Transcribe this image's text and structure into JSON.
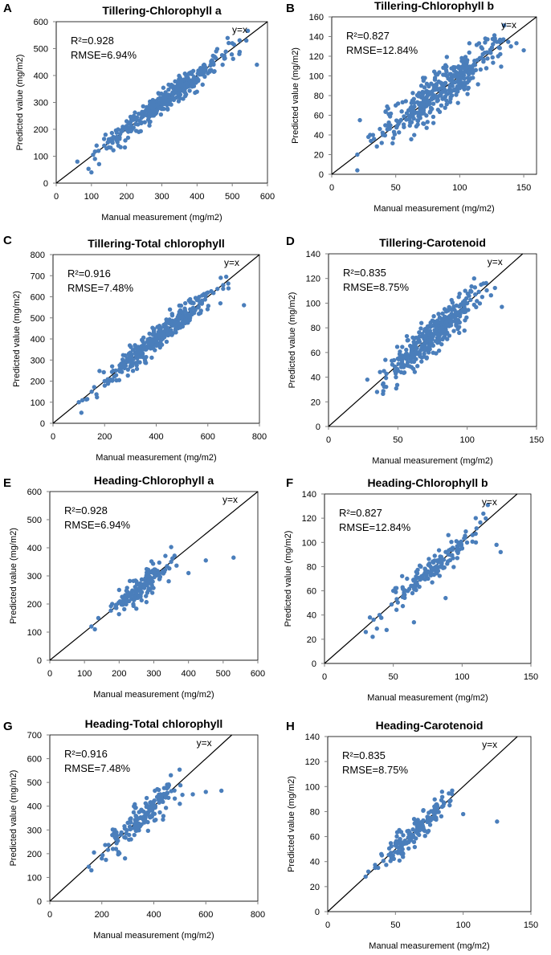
{
  "figure": {
    "dot_color": "#4a7ebb",
    "panels": [
      {
        "letter": "A",
        "stats": {
          "r2": "R²=0.928",
          "rmse": "RMSE=6.94%"
        },
        "line_label": "y=x"
      },
      {
        "letter": "B",
        "stats": {
          "r2": "R²=0.827",
          "rmse": "RMSE=12.84%"
        },
        "line_label": "y=x"
      },
      {
        "letter": "C",
        "stats": {
          "r2": "R²=0.916",
          "rmse": "RMSE=7.48%"
        },
        "line_label": "y=x"
      },
      {
        "letter": "D",
        "stats": {
          "r2": "R²=0.835",
          "rmse": "RMSE=8.75%"
        },
        "line_label": "y=x"
      },
      {
        "letter": "E",
        "stats": {
          "r2": "R²=0.928",
          "rmse": "RMSE=6.94%"
        },
        "line_label": "y=x"
      },
      {
        "letter": "F",
        "stats": {
          "r2": "R²=0.827",
          "rmse": "RMSE=12.84%"
        },
        "line_label": "y=x"
      },
      {
        "letter": "G",
        "stats": {
          "r2": "R²=0.916",
          "rmse": "RMSE=7.48%"
        },
        "line_label": "y=x"
      },
      {
        "letter": "H",
        "stats": {
          "r2": "R²=0.835",
          "rmse": "RMSE=8.75%"
        },
        "line_label": "y=x"
      }
    ]
  },
  "chart_data": [
    {
      "type": "scatter",
      "title": "Tillering-Chlorophyll a",
      "xlabel": "Manual measurement (mg/m2)",
      "ylabel": "Predicted value (mg/m2)",
      "xlim": [
        0,
        600
      ],
      "ylim": [
        0,
        600
      ],
      "xticks": [
        0,
        100,
        200,
        300,
        400,
        500,
        600
      ],
      "yticks": [
        0,
        100,
        200,
        300,
        400,
        500,
        600
      ],
      "reference_line": "y=x",
      "r2": 0.928,
      "rmse_percent": 6.94,
      "n_points": 380,
      "range": [
        60,
        570
      ],
      "noise_sd": 22,
      "series": [
        {
          "name": "observations",
          "points": [
            [
              60,
              80
            ],
            [
              100,
              40
            ],
            [
              110,
              90
            ],
            [
              120,
              120
            ],
            [
              140,
              180
            ],
            [
              160,
              150
            ],
            [
              180,
              170
            ],
            [
              200,
              230
            ],
            [
              250,
              260
            ],
            [
              300,
              300
            ],
            [
              350,
              360
            ],
            [
              400,
              390
            ],
            [
              420,
              440
            ],
            [
              450,
              470
            ],
            [
              500,
              520
            ],
            [
              520,
              480
            ],
            [
              540,
              530
            ],
            [
              570,
              440
            ]
          ]
        }
      ]
    },
    {
      "type": "scatter",
      "title": "Tillering-Chlorophyll b",
      "xlabel": "Manual measurement  (mg/m2)",
      "ylabel": "Predicted value (mg/m2)",
      "xlim": [
        0,
        160
      ],
      "ylim": [
        0,
        160
      ],
      "xticks": [
        0,
        50,
        100,
        150
      ],
      "yticks": [
        0,
        20,
        40,
        60,
        80,
        100,
        120,
        140,
        160
      ],
      "reference_line": "y=x",
      "r2": 0.827,
      "rmse_percent": 12.84,
      "n_points": 380,
      "range": [
        18,
        150
      ],
      "noise_sd": 10,
      "series": [
        {
          "name": "observations",
          "points": [
            [
              20,
              4
            ],
            [
              20,
              20
            ],
            [
              22,
              55
            ],
            [
              30,
              40
            ],
            [
              40,
              40
            ],
            [
              50,
              70
            ],
            [
              60,
              65
            ],
            [
              70,
              90
            ],
            [
              80,
              80
            ],
            [
              90,
              100
            ],
            [
              100,
              95
            ],
            [
              110,
              110
            ],
            [
              120,
              138
            ],
            [
              130,
              120
            ],
            [
              140,
              130
            ],
            [
              150,
              126
            ]
          ]
        }
      ]
    },
    {
      "type": "scatter",
      "title": "Tillering-Total chlorophyll",
      "xlabel": "Manual measurement  (mg/m2)",
      "ylabel": "Predicted value (mg/m2)",
      "xlim": [
        0,
        800
      ],
      "ylim": [
        0,
        800
      ],
      "xticks": [
        0,
        200,
        400,
        600,
        800
      ],
      "yticks": [
        0,
        100,
        200,
        300,
        400,
        500,
        600,
        700,
        800
      ],
      "reference_line": "y=x",
      "r2": 0.916,
      "rmse_percent": 7.48,
      "n_points": 380,
      "range": [
        90,
        720
      ],
      "noise_sd": 30,
      "series": [
        {
          "name": "observations",
          "points": [
            [
              100,
              100
            ],
            [
              110,
              50
            ],
            [
              150,
              150
            ],
            [
              200,
              200
            ],
            [
              300,
              300
            ],
            [
              400,
              400
            ],
            [
              500,
              500
            ],
            [
              600,
              620
            ],
            [
              650,
              690
            ],
            [
              680,
              640
            ],
            [
              740,
              560
            ]
          ]
        }
      ]
    },
    {
      "type": "scatter",
      "title": "Tillering-Carotenoid",
      "xlabel": "Manual measurement   (mg/m2)",
      "ylabel": "Predicted value (mg/m2)",
      "xlim": [
        0,
        150
      ],
      "ylim": [
        0,
        140
      ],
      "xticks": [
        0,
        50,
        100,
        150
      ],
      "yticks": [
        0,
        20,
        40,
        60,
        80,
        100,
        120,
        140
      ],
      "reference_line": "y=x",
      "r2": 0.835,
      "rmse_percent": 8.75,
      "n_points": 380,
      "range": [
        28,
        125
      ],
      "noise_sd": 7,
      "series": [
        {
          "name": "observations",
          "points": [
            [
              28,
              38
            ],
            [
              35,
              28
            ],
            [
              40,
              45
            ],
            [
              50,
              55
            ],
            [
              60,
              62
            ],
            [
              70,
              70
            ],
            [
              80,
              82
            ],
            [
              90,
              90
            ],
            [
              100,
              100
            ],
            [
              105,
              120
            ],
            [
              110,
              115
            ],
            [
              125,
              97
            ]
          ]
        }
      ]
    },
    {
      "type": "scatter",
      "title": "Heading-Chlorophyll a",
      "xlabel": "Manual measurement (mg/m2)",
      "ylabel": "Predicted value (mg/m2)",
      "xlim": [
        0,
        600
      ],
      "ylim": [
        0,
        600
      ],
      "xticks": [
        0,
        100,
        200,
        300,
        400,
        500,
        600
      ],
      "yticks": [
        0,
        100,
        200,
        300,
        400,
        500,
        600
      ],
      "reference_line": "y=x",
      "r2": 0.928,
      "rmse_percent": 6.94,
      "n_points": 160,
      "range": [
        120,
        400
      ],
      "noise_sd": 25,
      "series": [
        {
          "name": "observations",
          "points": [
            [
              120,
              120
            ],
            [
              130,
              110
            ],
            [
              140,
              150
            ],
            [
              180,
              200
            ],
            [
              200,
              250
            ],
            [
              250,
              280
            ],
            [
              300,
              320
            ],
            [
              350,
              350
            ],
            [
              400,
              310
            ],
            [
              450,
              355
            ],
            [
              530,
              365
            ]
          ]
        }
      ]
    },
    {
      "type": "scatter",
      "title": "Heading-Chlorophyll b",
      "xlabel": "Manual measurement  (mg/m2)",
      "ylabel": "Predicted value (mg/m2)",
      "xlim": [
        0,
        150
      ],
      "ylim": [
        0,
        140
      ],
      "xticks": [
        0,
        50,
        100,
        150
      ],
      "yticks": [
        0,
        20,
        40,
        60,
        80,
        100,
        120,
        140
      ],
      "reference_line": "y=x",
      "r2": 0.827,
      "rmse_percent": 12.84,
      "n_points": 160,
      "range": [
        30,
        128
      ],
      "noise_sd": 6,
      "series": [
        {
          "name": "observations",
          "points": [
            [
              30,
              26
            ],
            [
              33,
              38
            ],
            [
              35,
              22
            ],
            [
              40,
              40
            ],
            [
              50,
              60
            ],
            [
              60,
              70
            ],
            [
              65,
              34
            ],
            [
              70,
              80
            ],
            [
              80,
              85
            ],
            [
              88,
              54
            ],
            [
              90,
              90
            ],
            [
              100,
              95
            ],
            [
              110,
              100
            ],
            [
              125,
              98
            ],
            [
              128,
              92
            ]
          ]
        }
      ]
    },
    {
      "type": "scatter",
      "title": "Heading-Total chlorophyll",
      "xlabel": "Manual measurement  (mg/m2)",
      "ylabel": "Predicted value (mg/m2)",
      "xlim": [
        0,
        800
      ],
      "ylim": [
        0,
        700
      ],
      "xticks": [
        0,
        200,
        400,
        600,
        800
      ],
      "yticks": [
        0,
        100,
        200,
        300,
        400,
        500,
        600,
        700
      ],
      "reference_line": "y=x",
      "r2": 0.916,
      "rmse_percent": 7.48,
      "n_points": 170,
      "range": [
        150,
        560
      ],
      "noise_sd": 35,
      "series": [
        {
          "name": "observations",
          "points": [
            [
              150,
              145
            ],
            [
              160,
              130
            ],
            [
              170,
              205
            ],
            [
              200,
              180
            ],
            [
              250,
              300
            ],
            [
              300,
              330
            ],
            [
              350,
              380
            ],
            [
              400,
              420
            ],
            [
              450,
              480
            ],
            [
              500,
              410
            ],
            [
              550,
              450
            ],
            [
              600,
              460
            ],
            [
              660,
              465
            ]
          ]
        }
      ]
    },
    {
      "type": "scatter",
      "title": "Heading-Carotenoid",
      "xlabel": "Manual measurement   (mg/m2)",
      "ylabel": "Predicted value (mg/m2)",
      "xlim": [
        0,
        150
      ],
      "ylim": [
        0,
        140
      ],
      "xticks": [
        0,
        50,
        100,
        150
      ],
      "yticks": [
        0,
        20,
        40,
        60,
        80,
        100,
        120,
        140
      ],
      "reference_line": "y=x",
      "r2": 0.835,
      "rmse_percent": 8.75,
      "n_points": 170,
      "range": [
        28,
        105
      ],
      "noise_sd": 5,
      "series": [
        {
          "name": "observations",
          "points": [
            [
              28,
              28
            ],
            [
              30,
              32
            ],
            [
              35,
              35
            ],
            [
              40,
              45
            ],
            [
              50,
              55
            ],
            [
              60,
              62
            ],
            [
              70,
              68
            ],
            [
              80,
              75
            ],
            [
              90,
              85
            ],
            [
              100,
              78
            ],
            [
              125,
              72
            ]
          ]
        }
      ]
    }
  ]
}
